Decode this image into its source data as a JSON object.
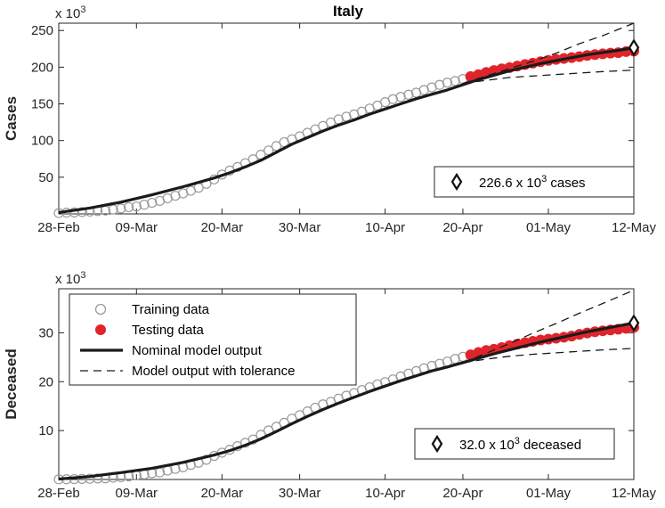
{
  "chart_data": [
    {
      "type": "line",
      "title": "Italy",
      "ylabel": "Cases",
      "exponent": "3",
      "ylim": [
        0,
        260
      ],
      "yticks": [
        50,
        100,
        150,
        200,
        250
      ],
      "xticks": [
        "28-Feb",
        "09-Mar",
        "20-Mar",
        "30-Mar",
        "10-Apr",
        "20-Apr",
        "01-May",
        "12-May"
      ],
      "xlim_days": [
        0,
        74
      ],
      "xtick_days": [
        0,
        10,
        21,
        31,
        42,
        52,
        63,
        74
      ],
      "training": {
        "x": [
          0,
          1,
          2,
          3,
          4,
          5,
          6,
          7,
          8,
          9,
          10,
          11,
          12,
          13,
          14,
          15,
          16,
          17,
          18,
          19,
          20,
          21,
          22,
          23,
          24,
          25,
          26,
          27,
          28,
          29,
          30,
          31,
          32,
          33,
          34,
          35,
          36,
          37,
          38,
          39,
          40,
          41,
          42,
          43,
          44,
          45,
          46,
          47,
          48,
          49,
          50,
          51,
          52
        ],
        "y": [
          1.1,
          1.7,
          2.0,
          2.5,
          3.1,
          3.9,
          4.6,
          5.9,
          7.4,
          9.2,
          10.1,
          12.5,
          15.1,
          17.7,
          21.2,
          24.7,
          27.9,
          31.5,
          35.7,
          41.0,
          47.0,
          53.6,
          59.1,
          63.9,
          69.2,
          74.4,
          80.6,
          86.5,
          92.5,
          97.7,
          101.7,
          105.8,
          110.6,
          115.2,
          119.8,
          124.6,
          128.9,
          132.5,
          135.6,
          139.4,
          143.6,
          147.6,
          152.3,
          156.4,
          159.5,
          162.5,
          165.2,
          168.9,
          172.4,
          175.9,
          178.9,
          181.2,
          183.9
        ]
      },
      "testing": {
        "x": [
          53,
          54,
          55,
          56,
          57,
          58,
          59,
          60,
          61,
          62,
          63,
          64,
          65,
          66,
          67,
          68,
          69,
          70,
          71,
          72,
          73,
          74
        ],
        "y": [
          187.3,
          189.9,
          192.9,
          195.4,
          197.7,
          199.4,
          201.5,
          203.6,
          205.5,
          207.4,
          209.3,
          210.7,
          211.9,
          213.0,
          214.5,
          215.9,
          217.2,
          218.3,
          219.1,
          219.8,
          221.2,
          221.9
        ]
      },
      "nominal": {
        "x": [
          0,
          4,
          8,
          12,
          16,
          20,
          22,
          24,
          26,
          28,
          30,
          32,
          34,
          36,
          38,
          40,
          42,
          44,
          46,
          48,
          50,
          52,
          54,
          56,
          58,
          60,
          62,
          64,
          66,
          68,
          70,
          72,
          74
        ],
        "y": [
          2,
          8,
          16,
          26,
          37,
          49,
          56,
          64,
          73,
          84,
          95,
          104,
          113,
          121,
          128,
          136,
          143,
          150,
          157,
          163,
          169,
          176,
          183,
          189,
          195,
          200,
          205,
          209,
          213,
          217,
          220,
          223,
          226.6
        ]
      },
      "upper": {
        "x": [
          52,
          55,
          58,
          61,
          64,
          67,
          70,
          74
        ],
        "y": [
          178,
          188,
          198,
          208,
          219,
          232,
          243,
          260
        ]
      },
      "lower": {
        "x": [
          52,
          55,
          58,
          61,
          64,
          67,
          70,
          74
        ],
        "y": [
          178,
          182,
          186,
          188,
          190,
          192,
          194,
          196
        ]
      },
      "marker": {
        "x": 74,
        "y": 226.6
      },
      "annotation": {
        "label_pre": "226.6 x 10",
        "label_exp": "3",
        "label_post": " cases"
      }
    },
    {
      "type": "line",
      "title": "",
      "ylabel": "Deceased",
      "exponent": "3",
      "ylim": [
        0,
        39
      ],
      "yticks": [
        10,
        20,
        30
      ],
      "xticks": [
        "28-Feb",
        "09-Mar",
        "20-Mar",
        "30-Mar",
        "10-Apr",
        "20-Apr",
        "01-May",
        "12-May"
      ],
      "xlim_days": [
        0,
        74
      ],
      "xtick_days": [
        0,
        10,
        21,
        31,
        42,
        52,
        63,
        74
      ],
      "training": {
        "x": [
          0,
          1,
          2,
          3,
          4,
          5,
          6,
          7,
          8,
          9,
          10,
          11,
          12,
          13,
          14,
          15,
          16,
          17,
          18,
          19,
          20,
          21,
          22,
          23,
          24,
          25,
          26,
          27,
          28,
          29,
          30,
          31,
          32,
          33,
          34,
          35,
          36,
          37,
          38,
          39,
          40,
          41,
          42,
          43,
          44,
          45,
          46,
          47,
          48,
          49,
          50,
          51,
          52
        ],
        "y": [
          0.03,
          0.05,
          0.08,
          0.11,
          0.15,
          0.2,
          0.23,
          0.37,
          0.46,
          0.63,
          0.83,
          1.02,
          1.27,
          1.44,
          1.81,
          2.16,
          2.5,
          2.98,
          3.41,
          4.03,
          4.83,
          5.48,
          6.08,
          6.82,
          7.5,
          8.17,
          9.13,
          10.02,
          10.78,
          11.59,
          12.43,
          13.16,
          13.92,
          14.68,
          15.36,
          15.89,
          16.52,
          17.13,
          17.67,
          18.28,
          18.85,
          19.47,
          19.9,
          20.47,
          21.07,
          21.65,
          22.17,
          22.75,
          23.23,
          23.66,
          24.11,
          24.65,
          25.09
        ]
      },
      "testing": {
        "x": [
          53,
          54,
          55,
          56,
          57,
          58,
          59,
          60,
          61,
          62,
          63,
          64,
          65,
          66,
          67,
          68,
          69,
          70,
          71,
          72,
          73,
          74
        ],
        "y": [
          25.5,
          25.97,
          26.38,
          26.64,
          26.98,
          27.36,
          27.68,
          27.97,
          28.24,
          28.53,
          28.71,
          28.88,
          29.08,
          29.32,
          29.68,
          29.96,
          30.2,
          30.4,
          30.56,
          30.74,
          30.91,
          31.1
        ]
      },
      "nominal": {
        "x": [
          0,
          4,
          8,
          12,
          16,
          20,
          22,
          24,
          26,
          28,
          30,
          32,
          34,
          36,
          38,
          40,
          42,
          44,
          46,
          48,
          50,
          52,
          54,
          56,
          58,
          60,
          62,
          64,
          66,
          68,
          70,
          72,
          74
        ],
        "y": [
          0.1,
          0.6,
          1.4,
          2.3,
          3.5,
          5.0,
          5.9,
          7.0,
          8.3,
          9.8,
          11.4,
          12.9,
          14.3,
          15.6,
          16.8,
          18.0,
          19.1,
          20.2,
          21.2,
          22.2,
          23.0,
          23.9,
          24.8,
          25.7,
          26.5,
          27.3,
          28.1,
          28.8,
          29.5,
          30.2,
          30.8,
          31.4,
          32.0
        ]
      },
      "upper": {
        "x": [
          52,
          55,
          58,
          61,
          64,
          67,
          70,
          74
        ],
        "y": [
          23.9,
          25.8,
          27.8,
          29.9,
          31.9,
          34.0,
          36.0,
          38.7
        ]
      },
      "lower": {
        "x": [
          52,
          55,
          58,
          61,
          64,
          67,
          70,
          74
        ],
        "y": [
          23.9,
          24.6,
          25.2,
          25.6,
          25.9,
          26.2,
          26.5,
          26.8
        ]
      },
      "marker": {
        "x": 74,
        "y": 32.0
      },
      "annotation": {
        "label_pre": "32.0 x 10",
        "label_exp": "3",
        "label_post": " deceased"
      }
    }
  ],
  "legend": {
    "placement": "top-left",
    "items": [
      {
        "label": "Training data",
        "style": "circle-open"
      },
      {
        "label": "Testing data",
        "style": "circle-filled"
      },
      {
        "label": "Nominal model output",
        "style": "solid"
      },
      {
        "label": "Model output with tolerance",
        "style": "dashed"
      }
    ]
  },
  "colors": {
    "training_edge": "#9a9a9a",
    "testing_fill": "#e0242b",
    "nominal": "#1a1a1a",
    "tolerance": "#1a1a1a",
    "axis": "#262626"
  }
}
